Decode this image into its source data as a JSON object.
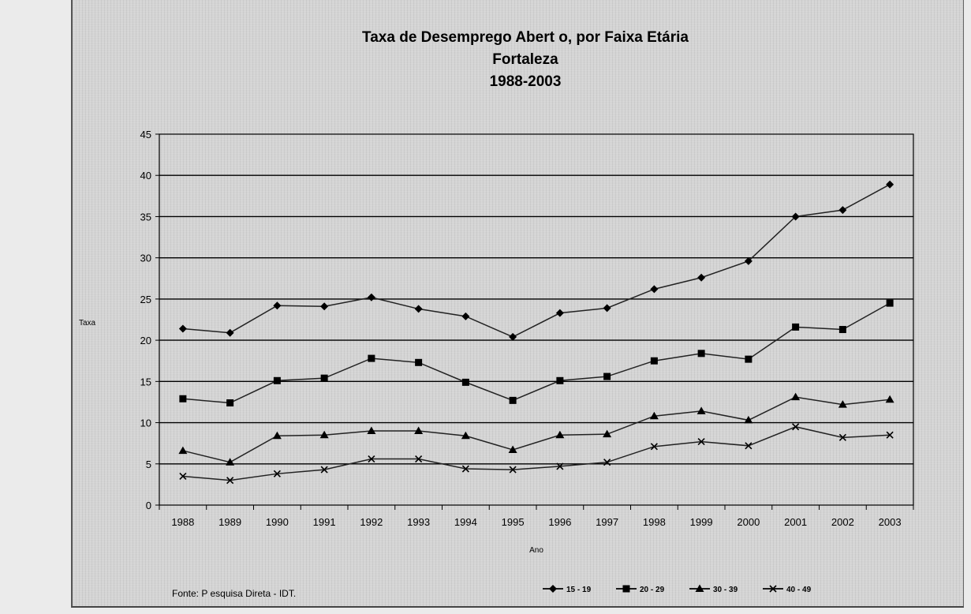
{
  "chart_data": {
    "type": "line",
    "title_lines": [
      "Taxa de Desemprego Abert o, por Faixa Etária",
      "Fortaleza",
      "1988-2003"
    ],
    "xlabel": "Ano",
    "ylabel": "Taxa",
    "categories": [
      "1988",
      "1989",
      "1990",
      "1991",
      "1992",
      "1993",
      "1994",
      "1995",
      "1996",
      "1997",
      "1998",
      "1999",
      "2000",
      "2001",
      "2002",
      "2003"
    ],
    "ylim": [
      0,
      45
    ],
    "yticks": [
      0,
      5,
      10,
      15,
      20,
      25,
      30,
      35,
      40,
      45
    ],
    "grid": true,
    "legend_position": "bottom-right",
    "series": [
      {
        "name": "15 - 19",
        "marker": "diamond",
        "values": [
          21.4,
          20.9,
          24.2,
          24.1,
          25.2,
          23.8,
          22.9,
          20.4,
          23.3,
          23.9,
          26.2,
          27.6,
          29.6,
          35.0,
          35.8,
          38.9
        ]
      },
      {
        "name": "20 - 29",
        "marker": "square",
        "values": [
          12.9,
          12.4,
          15.1,
          15.4,
          17.8,
          17.3,
          14.9,
          12.7,
          15.1,
          15.6,
          17.5,
          18.4,
          17.7,
          21.6,
          21.3,
          24.5
        ]
      },
      {
        "name": "30 - 39",
        "marker": "triangle",
        "values": [
          6.6,
          5.2,
          8.4,
          8.5,
          9.0,
          9.0,
          8.4,
          6.7,
          8.5,
          8.6,
          10.8,
          11.4,
          10.3,
          13.1,
          12.2,
          12.8
        ]
      },
      {
        "name": "40 - 49",
        "marker": "x",
        "values": [
          3.5,
          3.0,
          3.8,
          4.3,
          5.6,
          5.6,
          4.4,
          4.3,
          4.7,
          5.2,
          7.1,
          7.7,
          7.2,
          9.5,
          8.2,
          8.5
        ]
      }
    ],
    "source": "Fonte: P esquisa Direta - IDT."
  }
}
